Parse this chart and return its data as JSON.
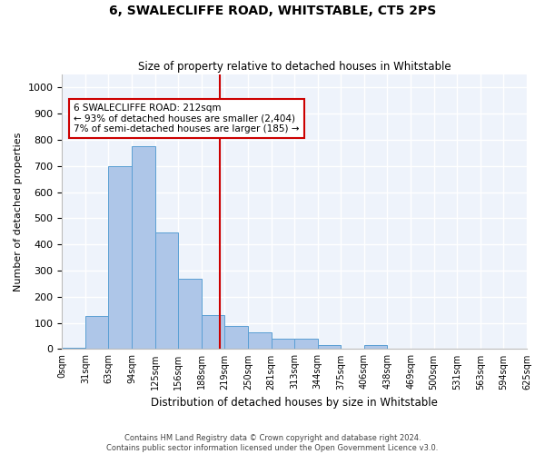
{
  "title1": "6, SWALECLIFFE ROAD, WHITSTABLE, CT5 2PS",
  "title2": "Size of property relative to detached houses in Whitstable",
  "xlabel": "Distribution of detached houses by size in Whitstable",
  "ylabel": "Number of detached properties",
  "bar_color": "#aec6e8",
  "bar_edge_color": "#5a9fd4",
  "background_color": "#eef3fb",
  "grid_color": "#ffffff",
  "bin_labels": [
    "0sqm",
    "31sqm",
    "63sqm",
    "94sqm",
    "125sqm",
    "156sqm",
    "188sqm",
    "219sqm",
    "250sqm",
    "281sqm",
    "313sqm",
    "344sqm",
    "375sqm",
    "406sqm",
    "438sqm",
    "469sqm",
    "500sqm",
    "531sqm",
    "563sqm",
    "594sqm",
    "625sqm"
  ],
  "bar_heights": [
    5,
    125,
    700,
    775,
    445,
    270,
    130,
    90,
    65,
    40,
    40,
    15,
    0,
    15,
    0,
    0,
    0,
    0,
    0,
    0
  ],
  "ylim": [
    0,
    1050
  ],
  "yticks": [
    0,
    100,
    200,
    300,
    400,
    500,
    600,
    700,
    800,
    900,
    1000
  ],
  "annotation_text1": "6 SWALECLIFFE ROAD: 212sqm",
  "annotation_text2": "← 93% of detached houses are smaller (2,404)",
  "annotation_text3": "7% of semi-detached houses are larger (185) →",
  "annotation_box_color": "#ffffff",
  "annotation_box_edge": "#cc0000",
  "red_line_color": "#cc0000",
  "footer1": "Contains HM Land Registry data © Crown copyright and database right 2024.",
  "footer2": "Contains public sector information licensed under the Open Government Licence v3.0."
}
